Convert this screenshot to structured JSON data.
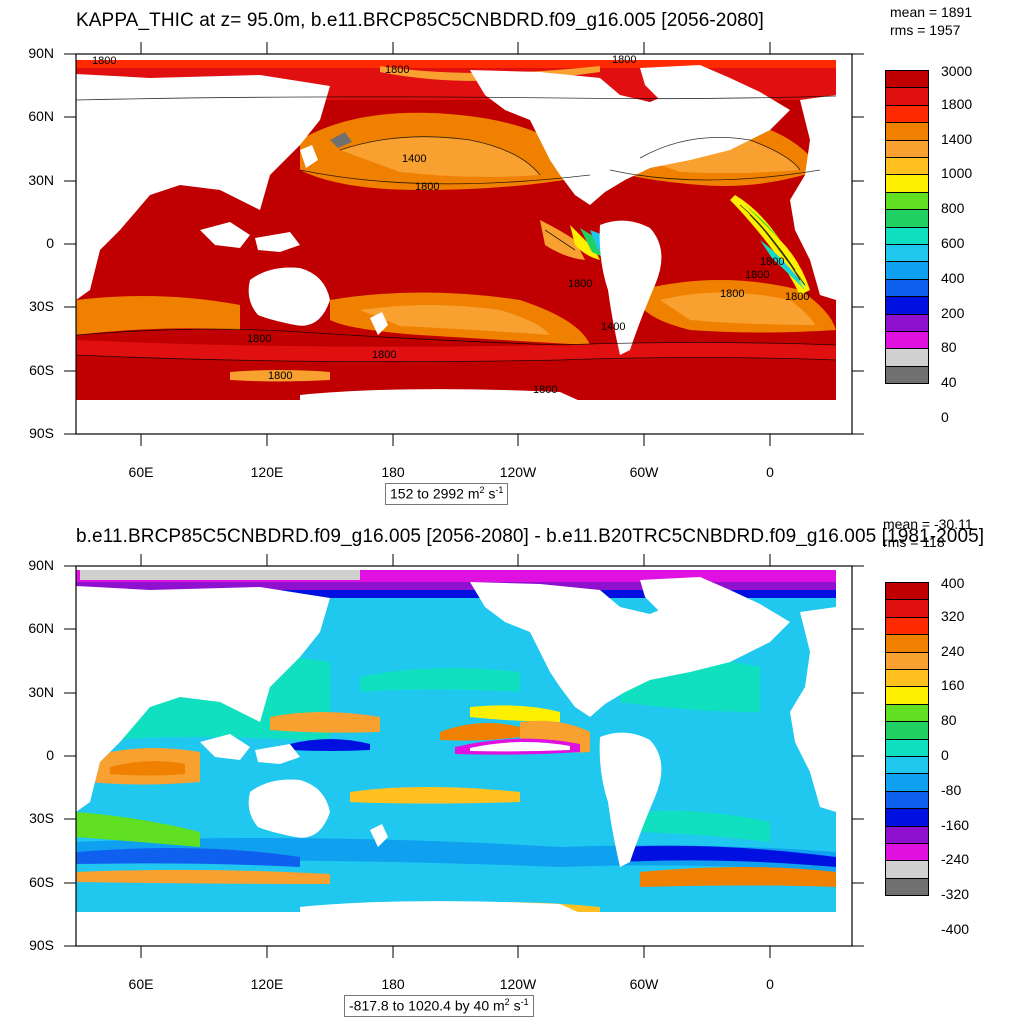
{
  "panel_top": {
    "title": "KAPPA_THIC at z=  95.0m, b.e11.BRCP85C5CNBDRD.f09_g16.005 [2056-2080]",
    "mean": "mean = 1891",
    "rms": "rms = 1957",
    "range_text": "152 to 2992 m",
    "range_unit_sup": "2",
    "range_unit_tail": " s",
    "range_unit_tail_sup": "-1",
    "lat_labels": [
      "90N",
      "60N",
      "30N",
      "0",
      "30S",
      "60S",
      "90S"
    ],
    "lon_labels": [
      "60E",
      "120E",
      "180",
      "120W",
      "60W",
      "0"
    ],
    "contour_labels": [
      "1800",
      "1800",
      "1800",
      "1400",
      "1800",
      "1800",
      "1800",
      "1800",
      "1800",
      "1800",
      "1800",
      "1800",
      "1800",
      "1400",
      "1800"
    ],
    "colorbar": {
      "labels": [
        "3000",
        "1800",
        "1400",
        "1000",
        "800",
        "600",
        "400",
        "200",
        "80",
        "40",
        "0"
      ],
      "colors": [
        "#c00000",
        "#e01010",
        "#ff2a00",
        "#f08000",
        "#f8a030",
        "#ffc020",
        "#fff000",
        "#60e020",
        "#20d060",
        "#10e0c0",
        "#20c8f0",
        "#10a0f0",
        "#1060f0",
        "#0010e0",
        "#9010d0",
        "#e010e0",
        "#d0d0d0",
        "#707070"
      ]
    }
  },
  "panel_bottom": {
    "title": "b.e11.BRCP85C5CNBDRD.f09_g16.005 [2056-2080] - b.e11.B20TRC5CNBDRD.f09_g16.005 [1981-2005]",
    "mean": "mean = -30.11",
    "rms": "rms = 118",
    "range_text": "-817.8 to 1020.4 by 40 m",
    "range_unit_sup": "2",
    "range_unit_tail": " s",
    "range_unit_tail_sup": "-1",
    "lat_labels": [
      "90N",
      "60N",
      "30N",
      "0",
      "30S",
      "60S",
      "90S"
    ],
    "lon_labels": [
      "60E",
      "120E",
      "180",
      "120W",
      "60W",
      "0"
    ],
    "colorbar": {
      "labels": [
        "400",
        "320",
        "240",
        "160",
        "80",
        "0",
        "-80",
        "-160",
        "-240",
        "-320",
        "-400"
      ],
      "colors": [
        "#c00000",
        "#e01010",
        "#ff2a00",
        "#f08000",
        "#f8a030",
        "#ffc020",
        "#fff000",
        "#60e020",
        "#20d060",
        "#10e0c0",
        "#20c8f0",
        "#10a0f0",
        "#1060f0",
        "#0010e0",
        "#9010d0",
        "#e010e0",
        "#d0d0d0",
        "#707070"
      ]
    }
  }
}
